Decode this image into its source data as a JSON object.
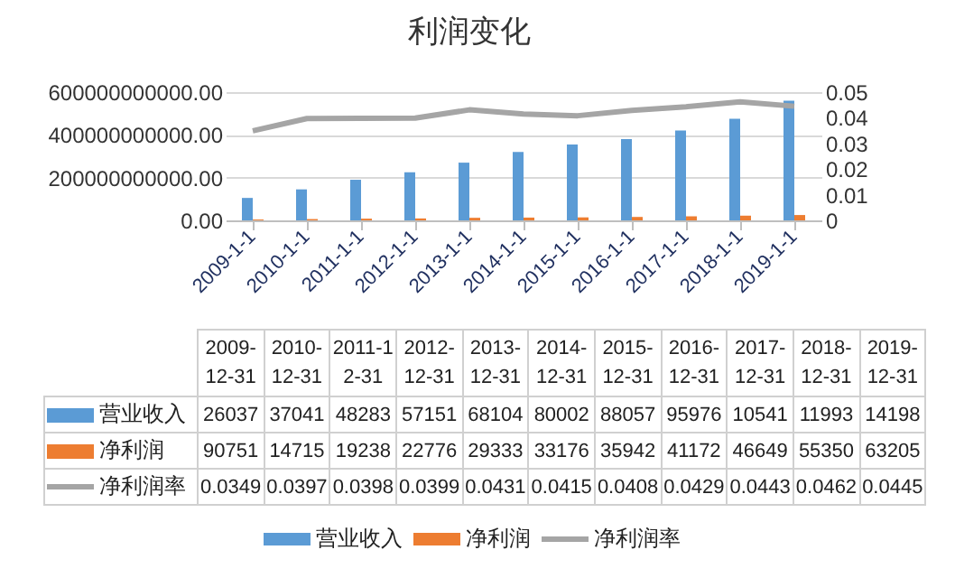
{
  "chart_data": {
    "type": "bar",
    "title": "利润变化",
    "categories": [
      "2009-1-1",
      "2010-1-1",
      "2011-1-1",
      "2012-1-1",
      "2013-1-1",
      "2014-1-1",
      "2015-1-1",
      "2016-1-1",
      "2017-1-1",
      "2018-1-1",
      "2019-1-1"
    ],
    "series": [
      {
        "name": "营业收入",
        "color": "#5b9bd5",
        "values": [
          105000000000,
          145000000000,
          190000000000,
          225000000000,
          270000000000,
          320000000000,
          355000000000,
          380000000000,
          420000000000,
          475000000000,
          560000000000
        ]
      },
      {
        "name": "净利润",
        "color": "#ed7d31",
        "values": [
          4000000000,
          6000000000,
          8000000000,
          9000000000,
          12000000000,
          13000000000,
          14000000000,
          16000000000,
          19000000000,
          22000000000,
          25000000000
        ]
      },
      {
        "name": "净利润率",
        "type": "line",
        "axis": "y2",
        "color": "#a5a5a5",
        "values": [
          0.0349,
          0.0397,
          0.0398,
          0.0399,
          0.0431,
          0.0415,
          0.0408,
          0.0429,
          0.0443,
          0.0462,
          0.0445
        ]
      }
    ],
    "ylim": [
      0,
      600000000000
    ],
    "yticks": [
      {
        "value": 0,
        "label": "0.00"
      },
      {
        "value": 200000000000,
        "label": "200000000000.00"
      },
      {
        "value": 400000000000,
        "label": "400000000000.00"
      },
      {
        "value": 600000000000,
        "label": "600000000000.00"
      }
    ],
    "y2lim": [
      0,
      0.05
    ],
    "y2ticks": [
      0,
      0.01,
      0.02,
      0.03,
      0.04,
      0.05
    ],
    "grid": "y",
    "legend": "bottom",
    "marker": "none",
    "line_style": "solid",
    "annotations": [
      "2009-12-31",
      "2010-12-31",
      "2011-12-31",
      "2012-12-31",
      "2013-12-31",
      "2014-12-31",
      "2015-12-31",
      "2016-12-31",
      "2017-12-31",
      "2018-12-31",
      "2019-12-31",
      "26037",
      "37041",
      "48283",
      "57151",
      "68104",
      "80002",
      "88057",
      "95976",
      "10541",
      "11993",
      "14198",
      "90751",
      "14715",
      "19238",
      "22776",
      "29333",
      "33176",
      "35942",
      "41172",
      "46649",
      "55350",
      "63205",
      "0.0349",
      "0.0397",
      "0.0398",
      "0.0399",
      "0.0431",
      "0.0415",
      "0.0408",
      "0.0429",
      "0.0443",
      "0.0462",
      "0.0445"
    ]
  }
}
